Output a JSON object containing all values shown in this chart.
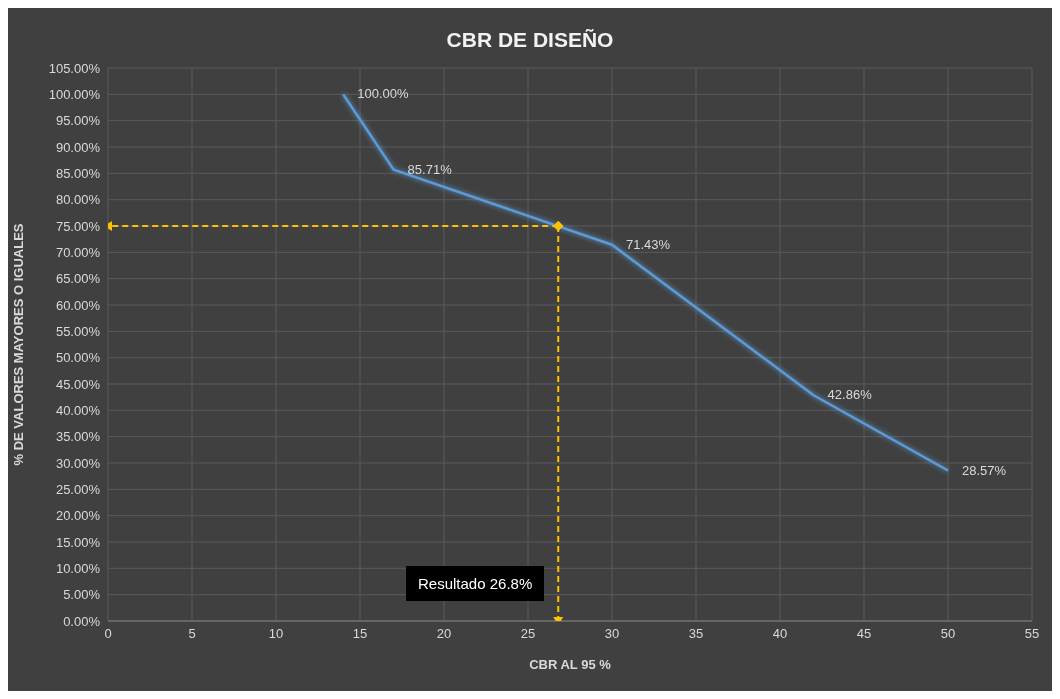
{
  "chart_data": {
    "type": "line",
    "title": "CBR DE DISEÑO",
    "xlabel": "CBR AL 95 %",
    "ylabel": "% DE VALORES MAYORES O IGUALES",
    "xlim": [
      0,
      55
    ],
    "xticks": [
      0,
      5,
      10,
      15,
      20,
      25,
      30,
      35,
      40,
      45,
      50,
      55
    ],
    "ylim": [
      0,
      105
    ],
    "yticks": [
      {
        "value": 0,
        "label": "0.00%"
      },
      {
        "value": 5,
        "label": "5.00%"
      },
      {
        "value": 10,
        "label": "10.00%"
      },
      {
        "value": 15,
        "label": "15.00%"
      },
      {
        "value": 20,
        "label": "20.00%"
      },
      {
        "value": 25,
        "label": "25.00%"
      },
      {
        "value": 30,
        "label": "30.00%"
      },
      {
        "value": 35,
        "label": "35.00%"
      },
      {
        "value": 40,
        "label": "40.00%"
      },
      {
        "value": 45,
        "label": "45.00%"
      },
      {
        "value": 50,
        "label": "50.00%"
      },
      {
        "value": 55,
        "label": "55.00%"
      },
      {
        "value": 60,
        "label": "60.00%"
      },
      {
        "value": 65,
        "label": "65.00%"
      },
      {
        "value": 70,
        "label": "70.00%"
      },
      {
        "value": 75,
        "label": "75.00%"
      },
      {
        "value": 80,
        "label": "80.00%"
      },
      {
        "value": 85,
        "label": "85.00%"
      },
      {
        "value": 90,
        "label": "90.00%"
      },
      {
        "value": 95,
        "label": "95.00%"
      },
      {
        "value": 100,
        "label": "100.00%"
      },
      {
        "value": 105,
        "label": "105.00%"
      }
    ],
    "grid": true,
    "series": [
      {
        "color": "#5b9bd5",
        "x": [
          14,
          17,
          30,
          42,
          50
        ],
        "values": [
          100,
          85.71,
          71.43,
          42.86,
          28.57
        ],
        "value_labels": [
          "100.00%",
          "85.71%",
          "71.43%",
          "42.86%",
          "28.57%"
        ],
        "marker": "none",
        "line_style": "solid"
      },
      {
        "color": "#ffc000",
        "x": [
          26.8,
          0
        ],
        "values": [
          75,
          75
        ],
        "marker": "diamond",
        "line_style": "dashed"
      },
      {
        "color": "#ffc000",
        "x": [
          26.8,
          26.8
        ],
        "values": [
          75,
          0
        ],
        "marker": "diamond",
        "line_style": "dashed"
      }
    ],
    "annotations": [
      "Resultado 26.8%"
    ]
  }
}
